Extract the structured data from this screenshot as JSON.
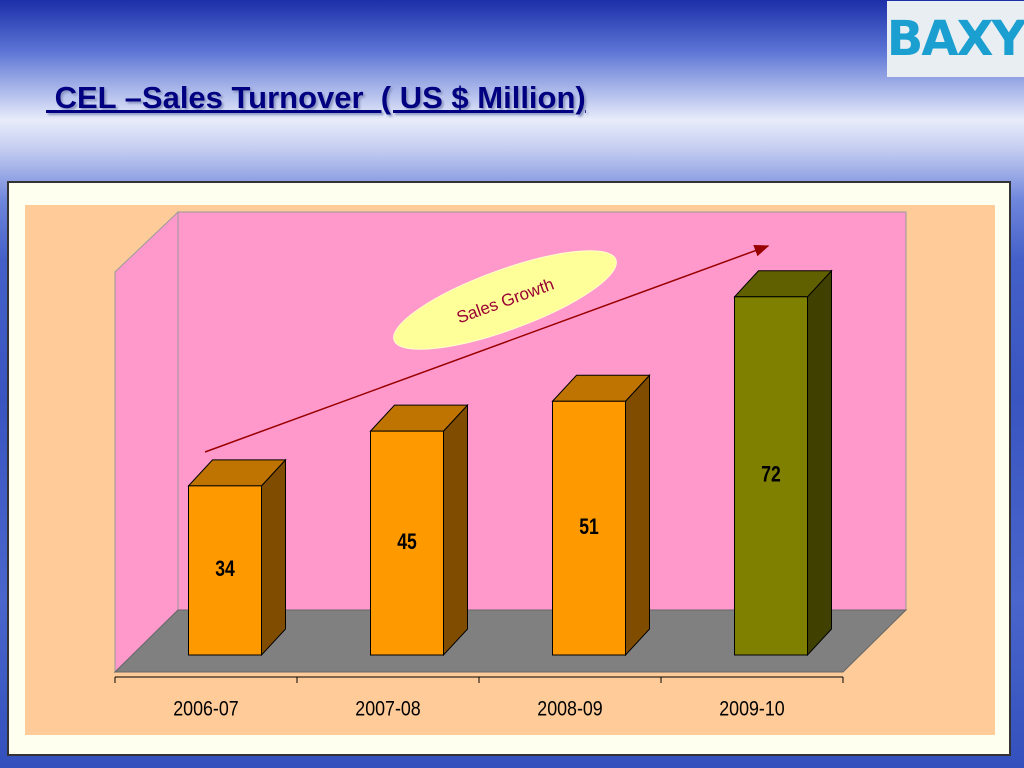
{
  "logo": "BAXY",
  "chart_data": {
    "type": "bar3d",
    "title": " CEL –Sales Turnover  ( US $ Million)",
    "annotation": "Sales Growth",
    "categories": [
      "2006-07",
      "2007-08",
      "2008-09",
      "2009-10"
    ],
    "values": [
      34,
      45,
      51,
      72
    ],
    "colors": [
      "#ff9900",
      "#ff9900",
      "#ff9900",
      "#808000"
    ],
    "ylim": [
      0,
      80
    ]
  }
}
